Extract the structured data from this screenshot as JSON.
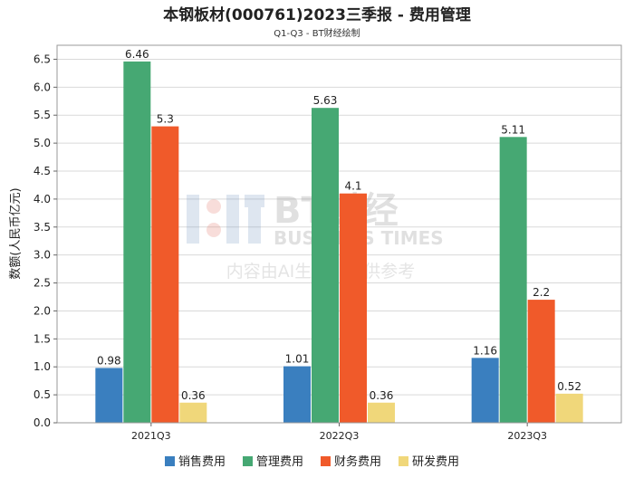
{
  "chart_data": {
    "type": "bar",
    "title": "本钢板材(000761)2023三季报 - 费用管理",
    "subtitle": "Q1-Q3 - BT财经绘制",
    "ylabel": "数额(人民币亿元)",
    "xlabel": "",
    "ylim": [
      0,
      6.75
    ],
    "yticks": [
      "0.0",
      "0.5",
      "1.0",
      "1.5",
      "2.0",
      "2.5",
      "3.0",
      "3.5",
      "4.0",
      "4.5",
      "5.0",
      "5.5",
      "6.0",
      "6.5"
    ],
    "grid": true,
    "legend_position": "bottom",
    "categories": [
      "2021Q3",
      "2022Q3",
      "2023Q3"
    ],
    "series": [
      {
        "name": "销售费用",
        "color": "#3a7fbf",
        "values": [
          0.98,
          1.01,
          1.16
        ],
        "labels": [
          "0.98",
          "1.01",
          "1.16"
        ]
      },
      {
        "name": "管理费用",
        "color": "#46a873",
        "values": [
          6.46,
          5.63,
          5.11
        ],
        "labels": [
          "6.46",
          "5.63",
          "5.11"
        ]
      },
      {
        "name": "财务费用",
        "color": "#f05a2a",
        "values": [
          5.3,
          4.1,
          2.2
        ],
        "labels": [
          "5.3",
          "4.1",
          "2.2"
        ]
      },
      {
        "name": "研发费用",
        "color": "#f0d77a",
        "values": [
          0.36,
          0.36,
          0.52
        ],
        "labels": [
          "0.36",
          "0.36",
          "0.52"
        ]
      }
    ]
  },
  "watermark": {
    "logo_text": "BT财经",
    "logo_subtext": "BUSINESS TIMES",
    "notice": "内容由AI生成，仅供参考"
  }
}
